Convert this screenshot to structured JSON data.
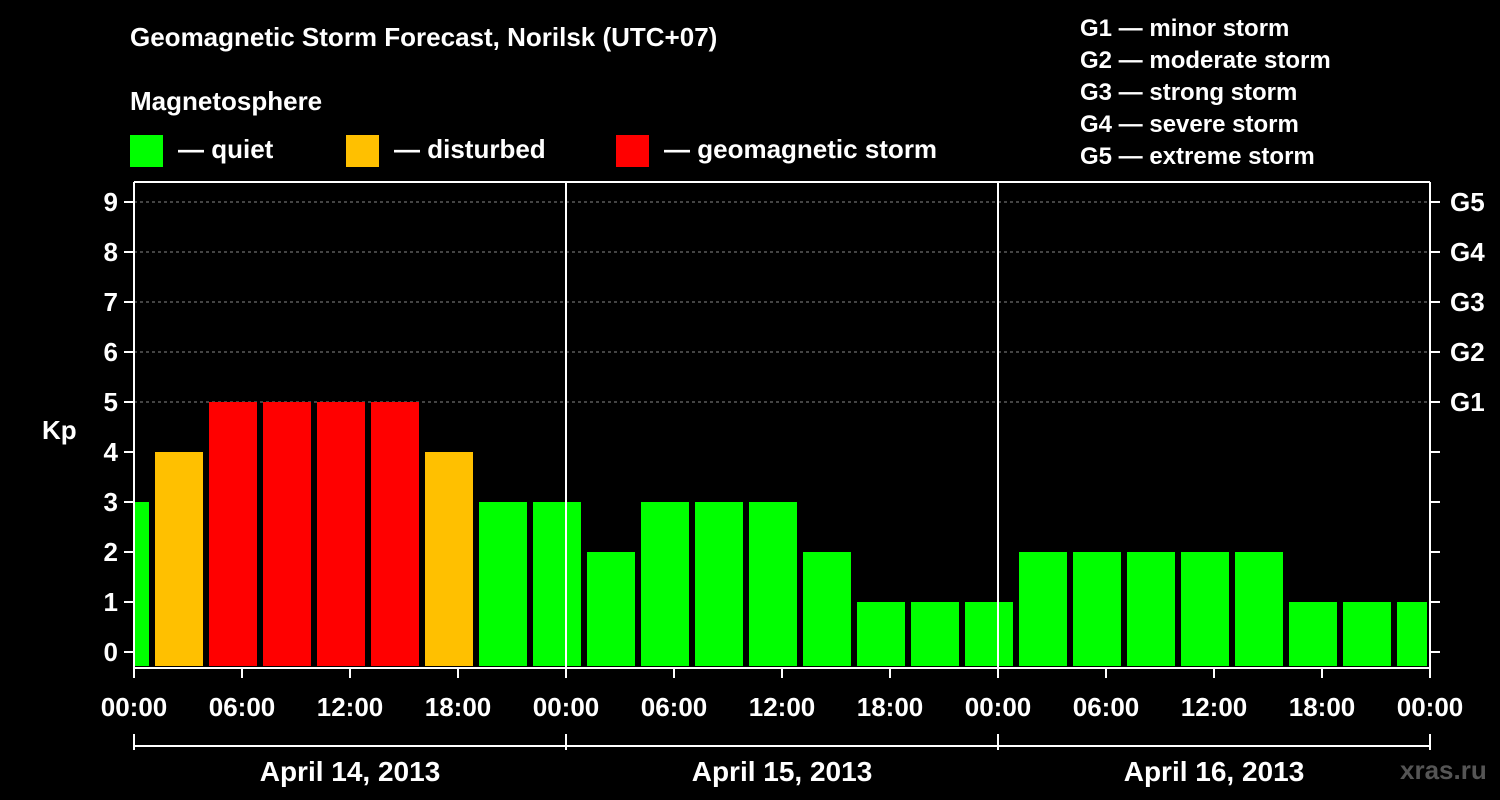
{
  "chart_data": {
    "type": "bar",
    "title": "Geomagnetic Storm Forecast, Norilsk (UTC+07)",
    "ylabel": "Kp",
    "ylim": [
      0,
      9
    ],
    "yticks": [
      "0",
      "1",
      "2",
      "3",
      "4",
      "5",
      "6",
      "7",
      "8",
      "9"
    ],
    "xticks": [
      "00:00",
      "06:00",
      "12:00",
      "18:00",
      "00:00",
      "06:00",
      "12:00",
      "18:00",
      "00:00",
      "06:00",
      "12:00",
      "18:00",
      "00:00"
    ],
    "days": [
      "April 14, 2013",
      "April 15, 2013",
      "April 16, 2013"
    ],
    "right_axis": [
      {
        "kp": 5,
        "label": "G1"
      },
      {
        "kp": 6,
        "label": "G2"
      },
      {
        "kp": 7,
        "label": "G3"
      },
      {
        "kp": 8,
        "label": "G4"
      },
      {
        "kp": 9,
        "label": "G5"
      }
    ],
    "interval_hours": 3,
    "start_offset_hours": 0,
    "values": [
      3,
      4,
      5,
      5,
      5,
      5,
      4,
      3,
      3,
      2,
      3,
      3,
      3,
      2,
      1,
      1,
      1,
      2,
      2,
      2,
      2,
      2,
      1,
      1,
      1
    ],
    "first_bar_partial_hours": 1,
    "colors": {
      "quiet": "#00ff00",
      "disturbed": "#ffc000",
      "storm": "#ff0000"
    }
  },
  "legend": {
    "heading": "Magnetosphere",
    "items": [
      {
        "label": "— quiet",
        "color": "#00ff00"
      },
      {
        "label": "— disturbed",
        "color": "#ffc000"
      },
      {
        "label": "— geomagnetic storm",
        "color": "#ff0000"
      }
    ]
  },
  "storm_scale": [
    "G1 — minor storm",
    "G2 — moderate storm",
    "G3 — strong storm",
    "G4 — severe storm",
    "G5 — extreme storm"
  ],
  "watermark": "xras.ru"
}
